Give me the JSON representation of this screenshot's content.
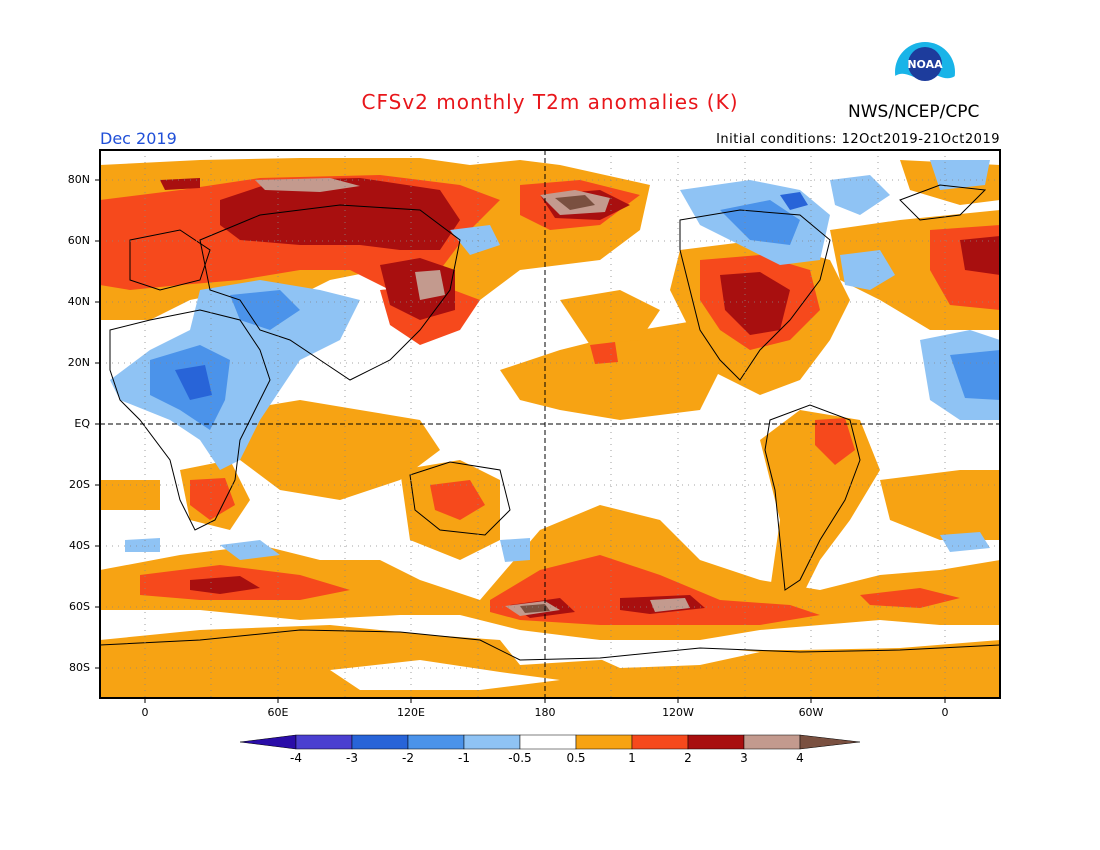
{
  "header": {
    "title": "CFSv2 monthly T2m anomalies (K)",
    "agency": "NWS/NCEP/CPC",
    "month": "Dec 2019",
    "initial_conditions": "Initial conditions: 12Oct2019-21Oct2019",
    "logo_text": "NOAA"
  },
  "axes": {
    "lat_labels": [
      "80N",
      "60N",
      "40N",
      "20N",
      "EQ",
      "20S",
      "40S",
      "60S",
      "80S"
    ],
    "lon_labels": [
      "0",
      "60E",
      "120E",
      "180",
      "120W",
      "60W",
      "0"
    ]
  },
  "colorbar": {
    "labels": [
      "-4",
      "-3",
      "-2",
      "-1",
      "-0.5",
      "0.5",
      "1",
      "2",
      "3",
      "4"
    ],
    "colors": [
      "#2a0da8",
      "#4a3fd0",
      "#2864d8",
      "#4b93ea",
      "#8fc3f4",
      "#ffffff",
      "#f7a313",
      "#f6491c",
      "#a80f0f",
      "#c39a8e",
      "#7a5040"
    ]
  },
  "colors": {
    "orange": "#f7a313",
    "red": "#f6491c",
    "darkred": "#a80f0f",
    "tan": "#c39a8e",
    "brown": "#7a5040",
    "lightblue": "#8fc3f4",
    "blue": "#4b93ea",
    "midblue": "#2864d8",
    "title_red": "#e8161b",
    "month_blue": "#1f4fd8"
  }
}
